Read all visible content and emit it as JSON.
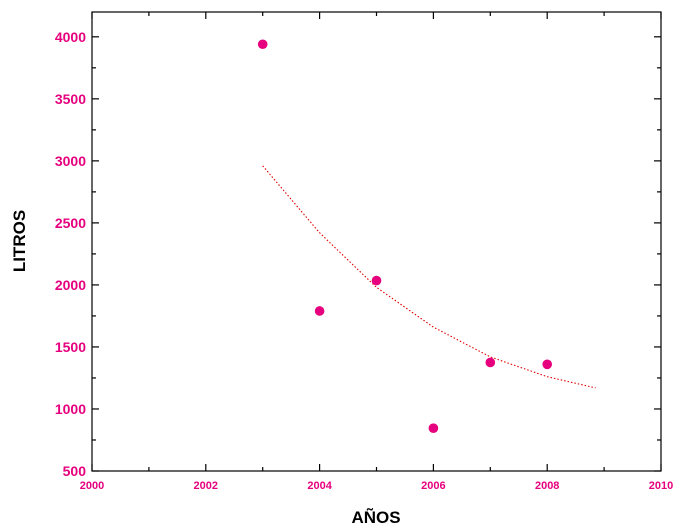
{
  "chart_data": {
    "type": "scatter",
    "title": "",
    "xlabel": "AÑOS",
    "ylabel": "LITROS",
    "xlim": [
      2000,
      2010
    ],
    "ylim": [
      500,
      4200
    ],
    "x_ticks": [
      2000,
      2002,
      2004,
      2006,
      2008,
      2010
    ],
    "y_ticks": [
      500,
      1000,
      1500,
      2000,
      2500,
      3000,
      3500,
      4000
    ],
    "x_tick_labels": [
      "2000",
      "2002",
      "2004",
      "2006",
      "2008",
      "2010"
    ],
    "y_tick_labels": [
      "500",
      "1000",
      "1500",
      "2000",
      "2500",
      "3000",
      "3500",
      "4000"
    ],
    "grid": false,
    "legend": "none",
    "series": [
      {
        "type": "scatter",
        "x": [
          2003,
          2004,
          2005,
          2006,
          2007,
          2008
        ],
        "y": [
          3940,
          1790,
          2035,
          845,
          1375,
          1360
        ]
      },
      {
        "type": "line",
        "style": "dotted",
        "x": [
          2003,
          2004,
          2005,
          2006,
          2007,
          2008,
          2008.85
        ],
        "y": [
          2960,
          2420,
          1980,
          1660,
          1420,
          1260,
          1170
        ]
      }
    ],
    "colors": {
      "points": "#e6007e",
      "trend": "#e00000",
      "tick_labels": "#e6007e",
      "axes": "#000000"
    }
  }
}
